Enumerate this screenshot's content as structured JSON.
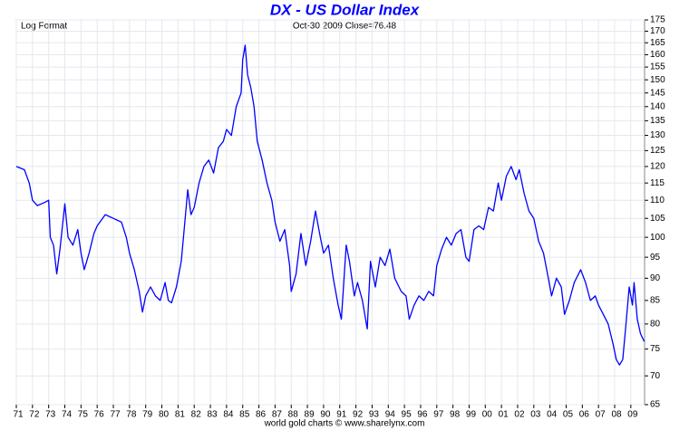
{
  "chart_data": {
    "type": "line",
    "title": "DX  -  US Dollar Index",
    "subtitle": "Oct-30  2009   Close=76.48",
    "scale_note": "Log Format",
    "footer": "world gold charts © www.sharelynx.com",
    "log_scale": true,
    "grid": true,
    "ylim": [
      65,
      175
    ],
    "yticks": [
      65,
      70,
      75,
      80,
      85,
      90,
      95,
      100,
      105,
      110,
      115,
      120,
      125,
      130,
      135,
      140,
      145,
      150,
      155,
      160,
      165,
      170,
      175
    ],
    "xlim": [
      1971,
      2009.85
    ],
    "xticks": [
      {
        "value": 1971,
        "label": "71"
      },
      {
        "value": 1972,
        "label": "72"
      },
      {
        "value": 1973,
        "label": "73"
      },
      {
        "value": 1974,
        "label": "74"
      },
      {
        "value": 1975,
        "label": "75"
      },
      {
        "value": 1976,
        "label": "76"
      },
      {
        "value": 1977,
        "label": "77"
      },
      {
        "value": 1978,
        "label": "78"
      },
      {
        "value": 1979,
        "label": "79"
      },
      {
        "value": 1980,
        "label": "80"
      },
      {
        "value": 1981,
        "label": "81"
      },
      {
        "value": 1982,
        "label": "82"
      },
      {
        "value": 1983,
        "label": "83"
      },
      {
        "value": 1984,
        "label": "84"
      },
      {
        "value": 1985,
        "label": "85"
      },
      {
        "value": 1986,
        "label": "86"
      },
      {
        "value": 1987,
        "label": "87"
      },
      {
        "value": 1988,
        "label": "88"
      },
      {
        "value": 1989,
        "label": "89"
      },
      {
        "value": 1990,
        "label": "90"
      },
      {
        "value": 1991,
        "label": "91"
      },
      {
        "value": 1992,
        "label": "92"
      },
      {
        "value": 1993,
        "label": "93"
      },
      {
        "value": 1994,
        "label": "94"
      },
      {
        "value": 1995,
        "label": "95"
      },
      {
        "value": 1996,
        "label": "96"
      },
      {
        "value": 1997,
        "label": "97"
      },
      {
        "value": 1998,
        "label": "98"
      },
      {
        "value": 1999,
        "label": "99"
      },
      {
        "value": 2000,
        "label": "00"
      },
      {
        "value": 2001,
        "label": "01"
      },
      {
        "value": 2002,
        "label": "02"
      },
      {
        "value": 2003,
        "label": "03"
      },
      {
        "value": 2004,
        "label": "04"
      },
      {
        "value": 2005,
        "label": "05"
      },
      {
        "value": 2006,
        "label": "06"
      },
      {
        "value": 2007,
        "label": "07"
      },
      {
        "value": 2008,
        "label": "08"
      },
      {
        "value": 2009,
        "label": "09"
      }
    ],
    "series": [
      {
        "name": "DX",
        "color": "#0000ff",
        "x": [
          1971.0,
          1971.5,
          1971.8,
          1972.0,
          1972.3,
          1972.8,
          1973.0,
          1973.1,
          1973.3,
          1973.5,
          1973.7,
          1974.0,
          1974.2,
          1974.5,
          1974.8,
          1975.0,
          1975.2,
          1975.5,
          1975.8,
          1976.0,
          1976.5,
          1977.0,
          1977.5,
          1977.8,
          1978.0,
          1978.3,
          1978.6,
          1978.8,
          1979.0,
          1979.3,
          1979.6,
          1979.9,
          1980.2,
          1980.4,
          1980.6,
          1980.9,
          1981.2,
          1981.4,
          1981.6,
          1981.8,
          1982.0,
          1982.3,
          1982.6,
          1982.9,
          1983.2,
          1983.5,
          1983.8,
          1984.0,
          1984.3,
          1984.6,
          1984.9,
          1985.0,
          1985.15,
          1985.3,
          1985.5,
          1985.7,
          1985.9,
          1986.2,
          1986.5,
          1986.8,
          1987.0,
          1987.3,
          1987.6,
          1987.9,
          1988.0,
          1988.3,
          1988.6,
          1988.9,
          1989.2,
          1989.5,
          1989.8,
          1990.0,
          1990.3,
          1990.6,
          1990.9,
          1991.1,
          1991.4,
          1991.6,
          1991.9,
          1992.1,
          1992.4,
          1992.7,
          1992.9,
          1993.2,
          1993.5,
          1993.8,
          1994.1,
          1994.4,
          1994.8,
          1995.1,
          1995.3,
          1995.6,
          1995.9,
          1996.2,
          1996.5,
          1996.8,
          1997.0,
          1997.3,
          1997.6,
          1997.9,
          1998.2,
          1998.5,
          1998.8,
          1999.0,
          1999.3,
          1999.6,
          1999.9,
          2000.2,
          2000.5,
          2000.8,
          2001.0,
          2001.3,
          2001.6,
          2001.9,
          2002.1,
          2002.4,
          2002.7,
          2003.0,
          2003.3,
          2003.6,
          2003.9,
          2004.1,
          2004.4,
          2004.7,
          2004.9,
          2005.2,
          2005.5,
          2005.9,
          2006.2,
          2006.5,
          2006.8,
          2007.0,
          2007.3,
          2007.6,
          2007.9,
          2008.1,
          2008.3,
          2008.5,
          2008.7,
          2008.9,
          2009.1,
          2009.2,
          2009.4,
          2009.6,
          2009.83
        ],
        "values": [
          120,
          119,
          115,
          110,
          108.5,
          109.5,
          110,
          100,
          98,
          91,
          97,
          109,
          100,
          98,
          102,
          96,
          92,
          96,
          101,
          103,
          106,
          105,
          104,
          100,
          96,
          92,
          87,
          82.5,
          86,
          88,
          86,
          85,
          89,
          85,
          84.5,
          88,
          94,
          103,
          113,
          106,
          108,
          115,
          120,
          122,
          118,
          126,
          128,
          132,
          130,
          140,
          145,
          158,
          164,
          152,
          147,
          140,
          128,
          122,
          115,
          110,
          104,
          99,
          102,
          93,
          87,
          91,
          101,
          93,
          99,
          107,
          100,
          96,
          98,
          90,
          84,
          81,
          98,
          94,
          86,
          89,
          85,
          79,
          94,
          88,
          95,
          93,
          97,
          90,
          87,
          86,
          81,
          84,
          86,
          85,
          87,
          86,
          93,
          97,
          100,
          98,
          101,
          102,
          95,
          94,
          102,
          103,
          102,
          108,
          107,
          115,
          110,
          117,
          120,
          116,
          119,
          112,
          107,
          105,
          99,
          96,
          90,
          86,
          90,
          88,
          82,
          85,
          89,
          92,
          89,
          85,
          86,
          84,
          82,
          80,
          76,
          73,
          72,
          73,
          80,
          88,
          84,
          89,
          81,
          78,
          76.48
        ]
      }
    ]
  }
}
